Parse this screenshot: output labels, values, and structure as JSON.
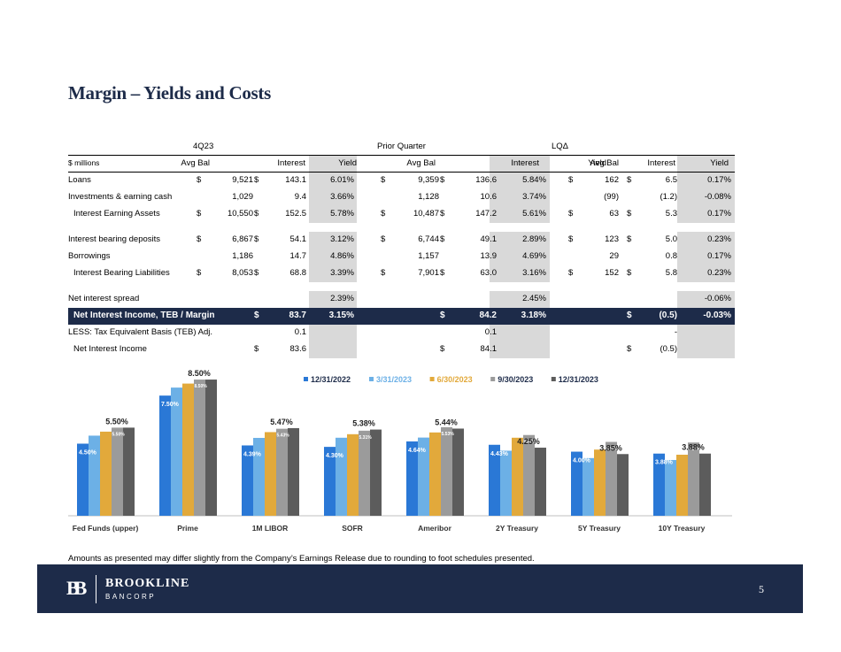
{
  "title": "Margin – Yields and Costs",
  "table": {
    "groups": [
      "4Q23",
      "Prior Quarter",
      "LQΔ"
    ],
    "units": "$ millions",
    "col_headers": [
      "Avg Bal",
      "Interest",
      "Yield"
    ],
    "rows": [
      {
        "label": "Loans",
        "c": [
          "$",
          "9,521",
          "$",
          "143.1",
          "6.01%",
          "$",
          "9,359",
          "$",
          "136.6",
          "5.84%",
          "$",
          "162",
          "$",
          "6.5",
          "0.17%"
        ]
      },
      {
        "label": "Investments & earning cash",
        "c": [
          "",
          "1,029",
          "",
          "9.4",
          "3.66%",
          "",
          "1,128",
          "",
          "10.6",
          "3.74%",
          "",
          "(99)",
          "",
          "(1.2)",
          "-0.08%"
        ]
      },
      {
        "label": "Interest Earning Assets",
        "c": [
          "$",
          "10,550",
          "$",
          "152.5",
          "5.78%",
          "$",
          "10,487",
          "$",
          "147.2",
          "5.61%",
          "$",
          "63",
          "$",
          "5.3",
          "0.17%"
        ]
      },
      {
        "label": "Interest bearing deposits",
        "c": [
          "$",
          "6,867",
          "$",
          "54.1",
          "3.12%",
          "$",
          "6,744",
          "$",
          "49.1",
          "2.89%",
          "$",
          "123",
          "$",
          "5.0",
          "0.23%"
        ]
      },
      {
        "label": "Borrowings",
        "c": [
          "",
          "1,186",
          "",
          "14.7",
          "4.86%",
          "",
          "1,157",
          "",
          "13.9",
          "4.69%",
          "",
          "29",
          "",
          "0.8",
          "0.17%"
        ]
      },
      {
        "label": "Interest Bearing Liabilities",
        "c": [
          "$",
          "8,053",
          "$",
          "68.8",
          "3.39%",
          "$",
          "7,901",
          "$",
          "63.0",
          "3.16%",
          "$",
          "152",
          "$",
          "5.8",
          "0.23%"
        ]
      },
      {
        "label": "Net interest spread",
        "c": [
          "",
          "",
          "",
          "",
          "2.39%",
          "",
          "",
          "",
          "",
          "2.45%",
          "",
          "",
          "",
          "",
          "-0.06%"
        ]
      },
      {
        "label": "Net Interest Income, TEB / Margin",
        "c": [
          "",
          "",
          "$",
          "83.7",
          "3.15%",
          "",
          "",
          "$",
          "84.2",
          "3.18%",
          "",
          "",
          "$",
          "(0.5)",
          "-0.03%"
        ]
      },
      {
        "label": "LESS: Tax Equivalent Basis (TEB) Adj.",
        "c": [
          "",
          "",
          "",
          "0.1",
          "",
          "",
          "",
          "",
          "0.1",
          "",
          "",
          "",
          "",
          "-",
          ""
        ]
      },
      {
        "label": "Net Interest Income",
        "c": [
          "",
          "",
          "$",
          "83.6",
          "",
          "",
          "",
          "$",
          "84.1",
          "",
          "",
          "",
          "$",
          "(0.5)",
          ""
        ]
      }
    ]
  },
  "chart_data": {
    "type": "bar",
    "categories": [
      "Fed Funds (upper)",
      "Prime",
      "1M LIBOR",
      "SOFR",
      "Ameribor",
      "2Y Treasury",
      "5Y Treasury",
      "10Y Treasury"
    ],
    "series": [
      {
        "name": "12/31/2022",
        "color": "#2a78d6",
        "values": [
          4.5,
          7.5,
          4.39,
          4.3,
          4.64,
          4.43,
          4.0,
          3.88
        ]
      },
      {
        "name": "3/31/2023",
        "color": "#6cb0e6",
        "values": [
          5.0,
          8.0,
          4.86,
          4.87,
          4.88,
          4.06,
          3.6,
          3.48
        ]
      },
      {
        "name": "6/30/2023",
        "color": "#e2a93b",
        "values": [
          5.25,
          8.25,
          5.22,
          5.09,
          5.2,
          4.87,
          4.13,
          3.81
        ]
      },
      {
        "name": "9/30/2023",
        "color": "#9b9b9b",
        "values": [
          5.5,
          8.5,
          5.43,
          5.31,
          5.53,
          5.04,
          4.61,
          4.57
        ]
      },
      {
        "name": "12/31/2023",
        "color": "#5c5c5c",
        "values": [
          5.5,
          8.5,
          5.47,
          5.38,
          5.44,
          4.25,
          3.85,
          3.88
        ]
      }
    ],
    "labels_first": [
      "4.50%",
      "7.50%",
      "4.39%",
      "4.30%",
      "4.64%",
      "4.43%",
      "4.00%",
      "3.88%"
    ],
    "labels_fourth": [
      "5.50%",
      "8.50%",
      "5.43%",
      "5.31%",
      "5.53%",
      "5.04%",
      "4.61%",
      "4.57%"
    ],
    "labels_last": [
      "5.50%",
      "8.50%",
      "5.47%",
      "5.38%",
      "5.44%",
      "4.25%",
      "3.85%",
      "3.88%"
    ],
    "ylim": [
      0,
      9
    ]
  },
  "footnote": "Amounts as presented may differ slightly from the Company’s Earnings Release due to rounding to foot schedules presented.",
  "footer": {
    "logo_mark": "BB",
    "brand_name": "BROOKLINE",
    "brand_sub": "BANCORP",
    "page_number": "5"
  },
  "colors": {
    "navy": "#1d2b49",
    "shade": "#d9d9d9"
  }
}
